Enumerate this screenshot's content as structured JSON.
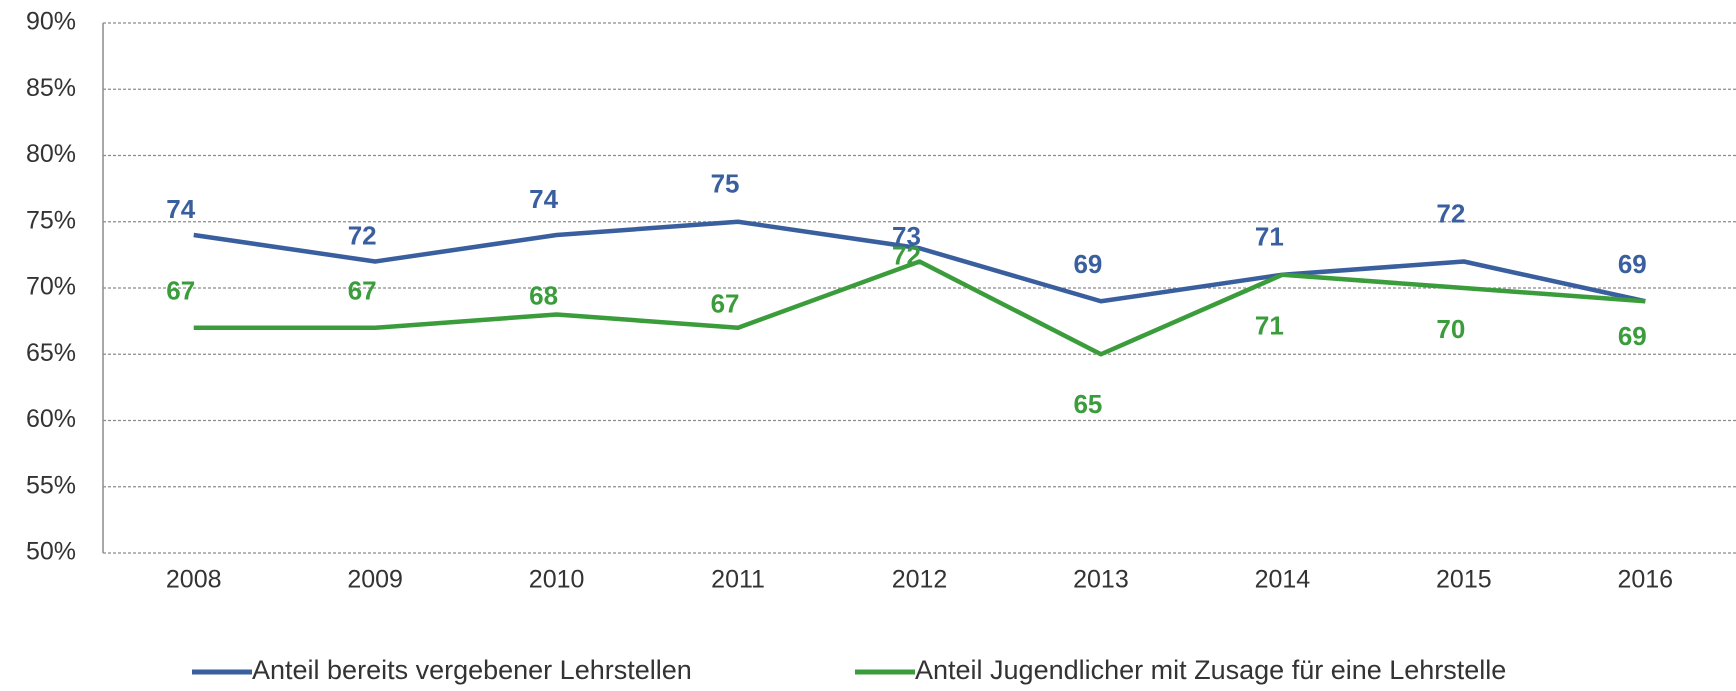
{
  "chart_data": {
    "type": "line",
    "categories": [
      "2008",
      "2009",
      "2010",
      "2011",
      "2012",
      "2013",
      "2014",
      "2015",
      "2016"
    ],
    "series": [
      {
        "name": "Anteil bereits vergebener Lehrstellen",
        "color": "#3a5f9e",
        "values": [
          74,
          72,
          74,
          75,
          73,
          69,
          71,
          72,
          69
        ]
      },
      {
        "name": "Anteil Jugendlicher mit Zusage für eine Lehrstelle",
        "color": "#3b9c3b",
        "values": [
          67,
          67,
          68,
          67,
          72,
          65,
          71,
          70,
          69
        ]
      }
    ],
    "ylim": [
      50,
      90
    ],
    "yticks": [
      {
        "value": 50,
        "label": "50%"
      },
      {
        "value": 55,
        "label": "55%"
      },
      {
        "value": 60,
        "label": "60%"
      },
      {
        "value": 65,
        "label": "65%"
      },
      {
        "value": 70,
        "label": "70%"
      },
      {
        "value": 75,
        "label": "75%"
      },
      {
        "value": 80,
        "label": "80%"
      },
      {
        "value": 85,
        "label": "85%"
      },
      {
        "value": 90,
        "label": "90%"
      }
    ],
    "grid": true,
    "legend": "bottom"
  }
}
